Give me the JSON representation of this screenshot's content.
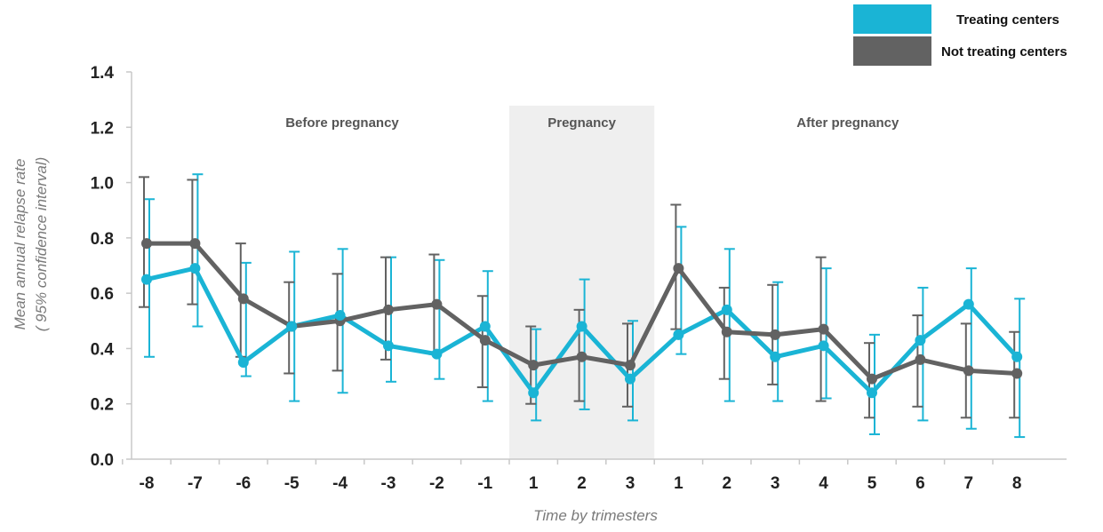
{
  "chart_data": {
    "type": "line",
    "ylabel_line1": "Mean annual relapse rate",
    "ylabel_line2": "( 95% confidence interval)",
    "xlabel": "Time by trimesters",
    "ylim": [
      0,
      1.4
    ],
    "yticks": [
      "0.0",
      "0.2",
      "0.4",
      "0.6",
      "0.8",
      "1.0",
      "1.2",
      "1.4"
    ],
    "categories": [
      "-8",
      "-7",
      "-6",
      "-5",
      "-4",
      "-3",
      "-2",
      "-1",
      "1",
      "2",
      "3",
      "1",
      "2",
      "3",
      "4",
      "5",
      "6",
      "7",
      "8"
    ],
    "sections": [
      {
        "label": "Before pregnancy",
        "start": 0,
        "end": 7,
        "shaded": false
      },
      {
        "label": "Pregnancy",
        "start": 8,
        "end": 10,
        "shaded": true
      },
      {
        "label": "After pregnancy",
        "start": 11,
        "end": 18,
        "shaded": false
      }
    ],
    "legend_position": "top-right",
    "series": [
      {
        "name": "Treating centers",
        "color": "#1ab4d5",
        "values": [
          0.65,
          0.69,
          0.35,
          0.48,
          0.52,
          0.41,
          0.38,
          0.48,
          0.24,
          0.48,
          0.29,
          0.45,
          0.54,
          0.37,
          0.41,
          0.24,
          0.43,
          0.56,
          0.37
        ],
        "lower": [
          0.37,
          0.48,
          0.3,
          0.21,
          0.24,
          0.28,
          0.29,
          0.21,
          0.14,
          0.18,
          0.14,
          0.38,
          0.21,
          0.21,
          0.22,
          0.09,
          0.14,
          0.11,
          0.08
        ],
        "upper": [
          0.94,
          1.03,
          0.71,
          0.75,
          0.76,
          0.73,
          0.72,
          0.68,
          0.47,
          0.65,
          0.5,
          0.84,
          0.76,
          0.64,
          0.69,
          0.45,
          0.62,
          0.69,
          0.58
        ]
      },
      {
        "name": "Not treating centers",
        "color": "#626262",
        "values": [
          0.78,
          0.78,
          0.58,
          0.48,
          0.5,
          0.54,
          0.56,
          0.43,
          0.34,
          0.37,
          0.34,
          0.69,
          0.46,
          0.45,
          0.47,
          0.29,
          0.36,
          0.32,
          0.31
        ],
        "lower": [
          0.55,
          0.56,
          0.37,
          0.31,
          0.32,
          0.36,
          0.38,
          0.26,
          0.2,
          0.21,
          0.19,
          0.47,
          0.29,
          0.27,
          0.21,
          0.15,
          0.19,
          0.15,
          0.15
        ],
        "upper": [
          1.02,
          1.01,
          0.78,
          0.64,
          0.67,
          0.73,
          0.74,
          0.59,
          0.48,
          0.54,
          0.49,
          0.92,
          0.62,
          0.63,
          0.73,
          0.42,
          0.52,
          0.49,
          0.46
        ]
      }
    ]
  }
}
